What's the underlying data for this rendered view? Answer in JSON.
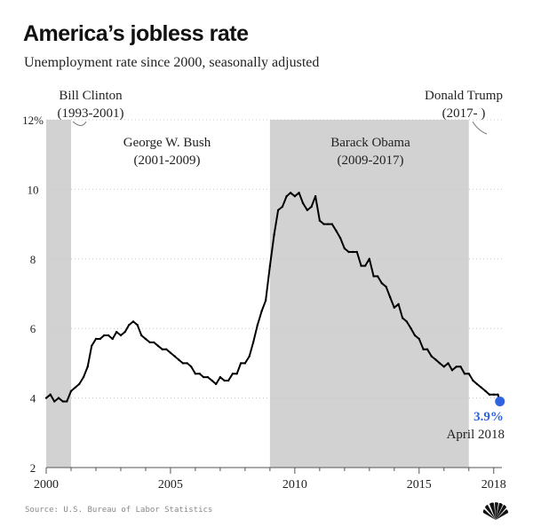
{
  "header": {
    "title": "America’s jobless rate",
    "subtitle": "Unemployment rate since 2000, seasonally adjusted"
  },
  "footer": {
    "source": "Source: U.S. Bureau of Labor Statistics",
    "logo": "nbc-peacock-icon"
  },
  "colors": {
    "line": "#000000",
    "shade": "#d2d2d2",
    "grid": "#c8c8c8",
    "accent": "#2f63e0",
    "text": "#222222"
  },
  "chart_data": {
    "type": "line",
    "title": "America’s jobless rate",
    "subtitle": "Unemployment rate since 2000, seasonally adjusted",
    "xlabel": "",
    "ylabel": "",
    "xlim": [
      2000,
      2018.33
    ],
    "ylim": [
      2,
      12
    ],
    "x_ticks": [
      2000,
      2005,
      2010,
      2015,
      2018
    ],
    "y_ticks": [
      {
        "value": 2,
        "label": "2"
      },
      {
        "value": 4,
        "label": "4"
      },
      {
        "value": 6,
        "label": "6"
      },
      {
        "value": 8,
        "label": "8"
      },
      {
        "value": 10,
        "label": "10"
      },
      {
        "value": 12,
        "label": "12%"
      }
    ],
    "grid": true,
    "presidencies": [
      {
        "name": "Bill Clinton",
        "years": "(1993-2001)",
        "start": 2000,
        "end": 2001.0,
        "shaded": true
      },
      {
        "name": "George W. Bush",
        "years": "(2001-2009)",
        "start": 2001.0,
        "end": 2009.0,
        "shaded": false
      },
      {
        "name": "Barack Obama",
        "years": "(2009-2017)",
        "start": 2009.0,
        "end": 2017.0,
        "shaded": true
      },
      {
        "name": "Donald Trump",
        "years": "(2017- )",
        "start": 2017.0,
        "end": 2018.33,
        "shaded": false
      }
    ],
    "series": [
      {
        "name": "Unemployment rate",
        "x": [
          2000.0,
          2000.17,
          2000.33,
          2000.5,
          2000.67,
          2000.83,
          2001.0,
          2001.17,
          2001.33,
          2001.5,
          2001.67,
          2001.83,
          2002.0,
          2002.17,
          2002.33,
          2002.5,
          2002.67,
          2002.83,
          2003.0,
          2003.17,
          2003.33,
          2003.5,
          2003.67,
          2003.83,
          2004.0,
          2004.17,
          2004.33,
          2004.5,
          2004.67,
          2004.83,
          2005.0,
          2005.17,
          2005.33,
          2005.5,
          2005.67,
          2005.83,
          2006.0,
          2006.17,
          2006.33,
          2006.5,
          2006.67,
          2006.83,
          2007.0,
          2007.17,
          2007.33,
          2007.5,
          2007.67,
          2007.83,
          2008.0,
          2008.17,
          2008.33,
          2008.5,
          2008.67,
          2008.83,
          2009.0,
          2009.17,
          2009.33,
          2009.5,
          2009.67,
          2009.83,
          2010.0,
          2010.17,
          2010.33,
          2010.5,
          2010.67,
          2010.83,
          2011.0,
          2011.17,
          2011.33,
          2011.5,
          2011.67,
          2011.83,
          2012.0,
          2012.17,
          2012.33,
          2012.5,
          2012.67,
          2012.83,
          2013.0,
          2013.17,
          2013.33,
          2013.5,
          2013.67,
          2013.83,
          2014.0,
          2014.17,
          2014.33,
          2014.5,
          2014.67,
          2014.83,
          2015.0,
          2015.17,
          2015.33,
          2015.5,
          2015.67,
          2015.83,
          2016.0,
          2016.17,
          2016.33,
          2016.5,
          2016.67,
          2016.83,
          2017.0,
          2017.17,
          2017.33,
          2017.5,
          2017.67,
          2017.83,
          2018.0,
          2018.17,
          2018.25
        ],
        "values": [
          4.0,
          4.1,
          3.9,
          4.0,
          3.9,
          3.9,
          4.2,
          4.3,
          4.4,
          4.6,
          4.9,
          5.5,
          5.7,
          5.7,
          5.8,
          5.8,
          5.7,
          5.9,
          5.8,
          5.9,
          6.1,
          6.2,
          6.1,
          5.8,
          5.7,
          5.6,
          5.6,
          5.5,
          5.4,
          5.4,
          5.3,
          5.2,
          5.1,
          5.0,
          5.0,
          4.9,
          4.7,
          4.7,
          4.6,
          4.6,
          4.5,
          4.4,
          4.6,
          4.5,
          4.5,
          4.7,
          4.7,
          5.0,
          5.0,
          5.2,
          5.6,
          6.1,
          6.5,
          6.8,
          7.8,
          8.7,
          9.4,
          9.5,
          9.8,
          9.9,
          9.8,
          9.9,
          9.6,
          9.4,
          9.5,
          9.8,
          9.1,
          9.0,
          9.0,
          9.0,
          8.8,
          8.6,
          8.3,
          8.2,
          8.2,
          8.2,
          7.8,
          7.8,
          8.0,
          7.5,
          7.5,
          7.3,
          7.2,
          6.9,
          6.6,
          6.7,
          6.3,
          6.2,
          6.0,
          5.8,
          5.7,
          5.4,
          5.4,
          5.2,
          5.1,
          5.0,
          4.9,
          5.0,
          4.8,
          4.9,
          4.9,
          4.7,
          4.7,
          4.5,
          4.4,
          4.3,
          4.2,
          4.1,
          4.1,
          4.1,
          3.9
        ]
      }
    ],
    "latest": {
      "value_label": "3.9%",
      "date_label": "April 2018",
      "x": 2018.25,
      "y": 3.9
    }
  }
}
